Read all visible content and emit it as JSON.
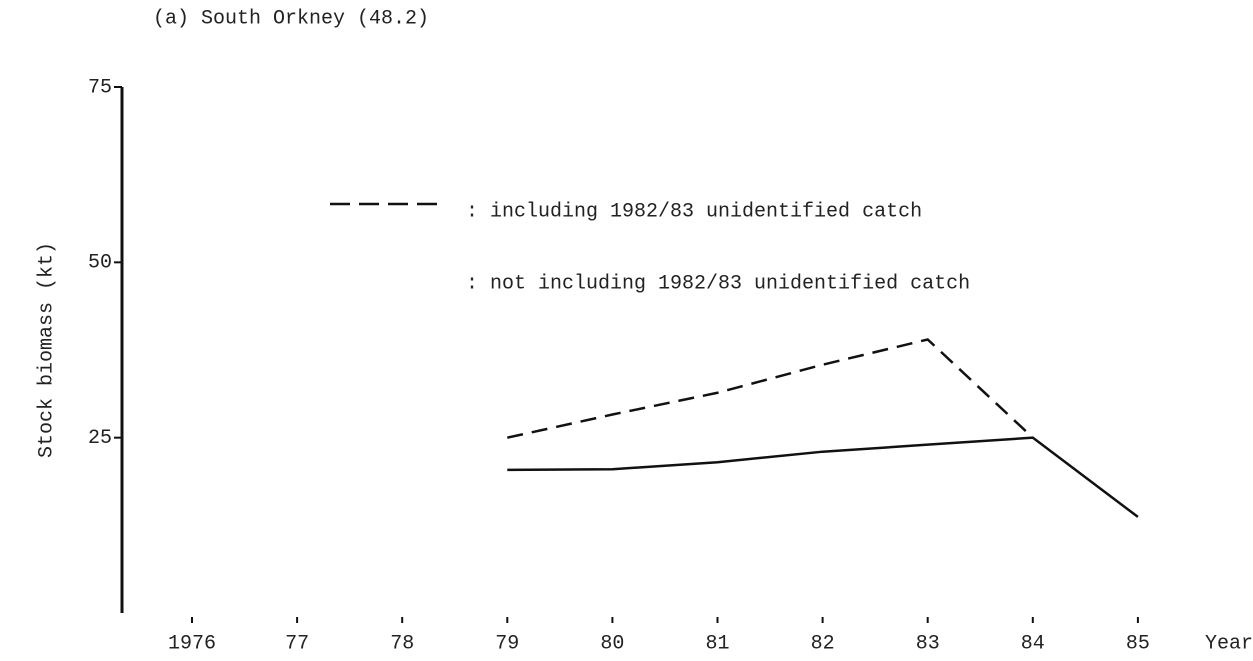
{
  "chart_data": {
    "type": "line",
    "title": "(a)   South Orkney (48.2)",
    "ylabel": "Stock biomass (kt)",
    "xlabel": "Year",
    "categories": [
      "1976",
      "77",
      "78",
      "79",
      "80",
      "81",
      "82",
      "83",
      "84",
      "85"
    ],
    "ylim": [
      0,
      75
    ],
    "yticks": [
      25,
      50,
      75
    ],
    "series": [
      {
        "name": ": including 1982/83 unidentified catch",
        "color": "#111111",
        "dash": true,
        "values": [
          null,
          null,
          null,
          25,
          28.3,
          31.4,
          35.4,
          39,
          25,
          null
        ]
      },
      {
        "name": ": not including 1982/83 unidentified catch",
        "color": "#111111",
        "dash": false,
        "values": [
          null,
          null,
          null,
          20.4,
          20.5,
          21.5,
          23,
          24,
          25,
          13.7
        ]
      }
    ]
  }
}
